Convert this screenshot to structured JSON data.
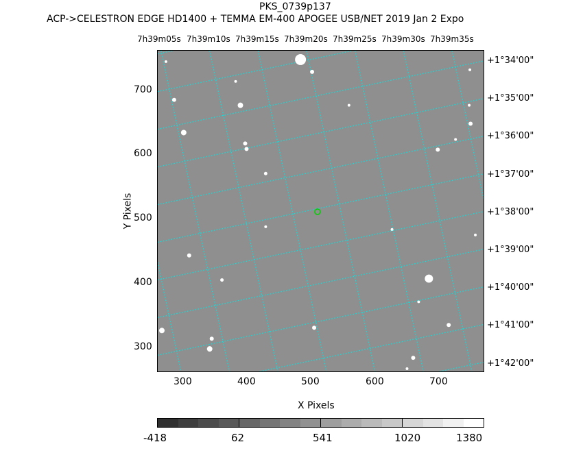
{
  "title": "PKS_0739p137",
  "subtitle": "ACP->CELESTRON EDGE HD1400 + TEMMA EM-400 APOGEE USB/NET   2019 Jan  2    Expo",
  "ra_labels": [
    "7h39m05s",
    "7h39m10s",
    "7h39m15s",
    "7h39m20s",
    "7h39m25s",
    "7h39m30s",
    "7h39m35s"
  ],
  "dec_labels": [
    "+1°34'00\"",
    "+1°35'00\"",
    "+1°36'00\"",
    "+1°37'00\"",
    "+1°38'00\"",
    "+1°39'00\"",
    "+1°40'00\"",
    "+1°41'00\"",
    "+1°42'00\""
  ],
  "x_axis": {
    "label": "X Pixels",
    "ticks": [
      "300",
      "400",
      "500",
      "600",
      "700"
    ]
  },
  "y_axis": {
    "label": "Y Pixels",
    "ticks": [
      "700",
      "600",
      "500",
      "400",
      "300"
    ]
  },
  "colorbar": {
    "ticks": [
      "-418",
      "62",
      "541",
      "1020",
      "1380"
    ]
  },
  "colors": {
    "grid": "#00e5e5",
    "target_marker": "#00d000",
    "background": "#8f8f8f"
  }
}
